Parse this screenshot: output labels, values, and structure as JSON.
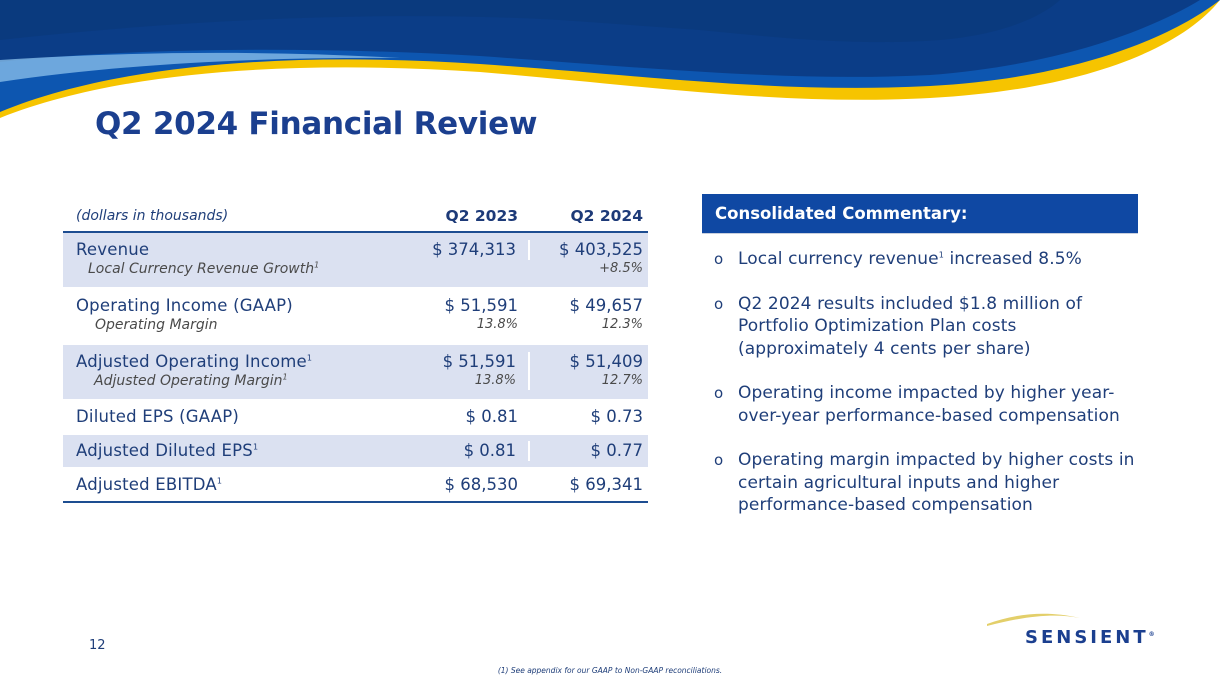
{
  "slide": {
    "title": "Q2 2024 Financial Review",
    "page_number": "12",
    "footnote": "(1) See appendix for our GAAP to Non-GAAP reconciliations."
  },
  "table": {
    "header": {
      "label": "(dollars in thousands)",
      "col1": "Q2 2023",
      "col2": "Q2 2024"
    },
    "rows": [
      {
        "label": "Revenue",
        "sub": "Local Currency Revenue Growth",
        "v1": "$ 374,313",
        "v2": "$ 403,525",
        "p1": "",
        "p2": "+8.5%"
      },
      {
        "label": "Operating Income (GAAP)",
        "sub": "Operating Margin",
        "v1": "$ 51,591",
        "v2": "$ 49,657",
        "p1": "13.8%",
        "p2": "12.3%"
      },
      {
        "label": "Adjusted Operating Income",
        "sub": "Adjusted Operating Margin",
        "v1": "$ 51,591",
        "v2": "$ 51,409",
        "p1": "13.8%",
        "p2": "12.7%"
      },
      {
        "label": "Diluted EPS (GAAP)",
        "v1": "$ 0.81",
        "v2": "$ 0.73"
      },
      {
        "label": "Adjusted Diluted EPS",
        "v1": "$ 0.81",
        "v2": "$ 0.77"
      },
      {
        "label": "Adjusted EBITDA",
        "v1": "$ 68,530",
        "v2": "$ 69,341"
      }
    ],
    "footnote_marker": "1"
  },
  "commentary": {
    "heading": "Consolidated Commentary:",
    "bullet_symbol": "o",
    "bullets": [
      {
        "text_a": "Local currency revenue",
        "sup": "1",
        "text_b": " increased 8.5%"
      },
      {
        "text": "Q2 2024 results included $1.8 million of Portfolio Optimization Plan costs (approximately 4 cents per share)"
      },
      {
        "text": "Operating income impacted by higher year-over-year performance-based compensation"
      },
      {
        "text": "Operating margin impacted by higher costs in certain agricultural inputs and higher performance-based compensation"
      }
    ]
  },
  "brand": {
    "logo_text": "SENSIENT",
    "trademark": "®",
    "colors": {
      "navy": "#0b3d87",
      "blue": "#0f48a3",
      "yellow": "#f6c400",
      "row_shade": "#dbe1f1"
    }
  }
}
